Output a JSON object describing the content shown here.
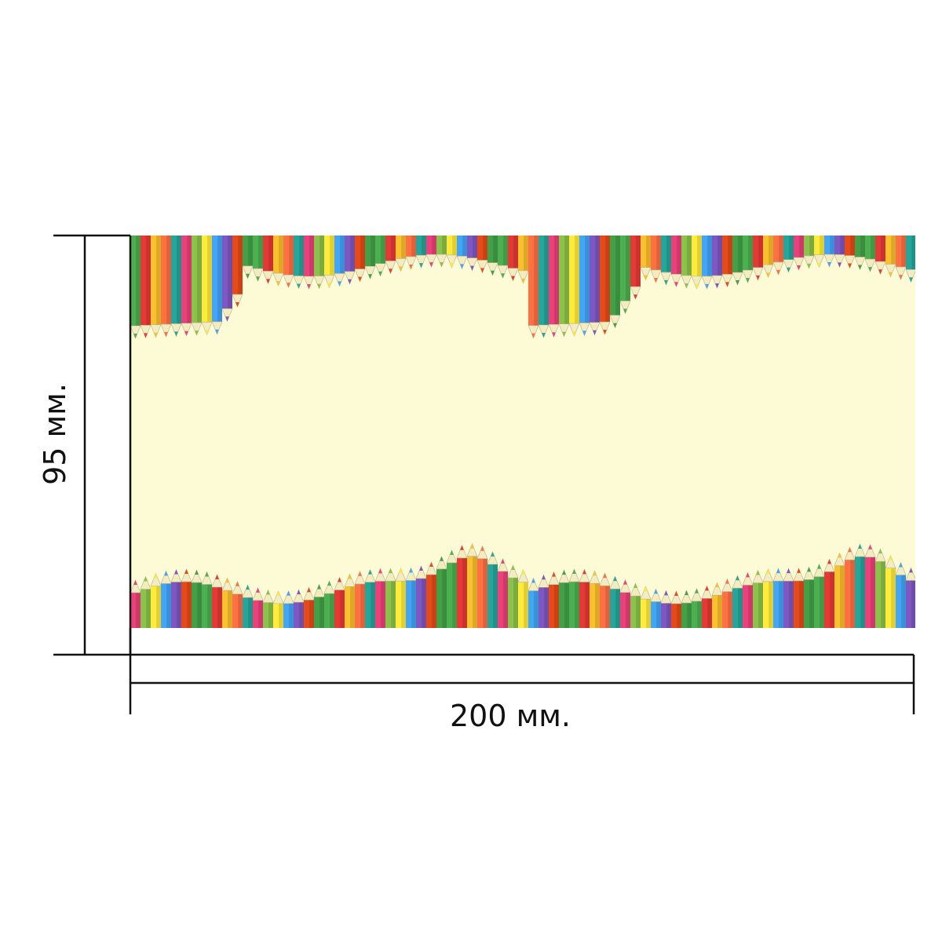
{
  "dimensions": {
    "height_label": "95 мм.",
    "width_label": "200 мм."
  },
  "design": {
    "background_color": "#fdfbd6",
    "pencil_colors": [
      "#4caf50",
      "#e53935",
      "#fbc02d",
      "#ff7043",
      "#26a69a",
      "#ec407a",
      "#8bc34a",
      "#ffeb3b",
      "#42a5f5",
      "#7e57c2",
      "#e64a19",
      "#43a047"
    ],
    "pencil_tip_color": "#f2ecc0",
    "top_border": "colored-pencils-pointing-down",
    "bottom_border": "colored-pencils-pointing-up"
  }
}
